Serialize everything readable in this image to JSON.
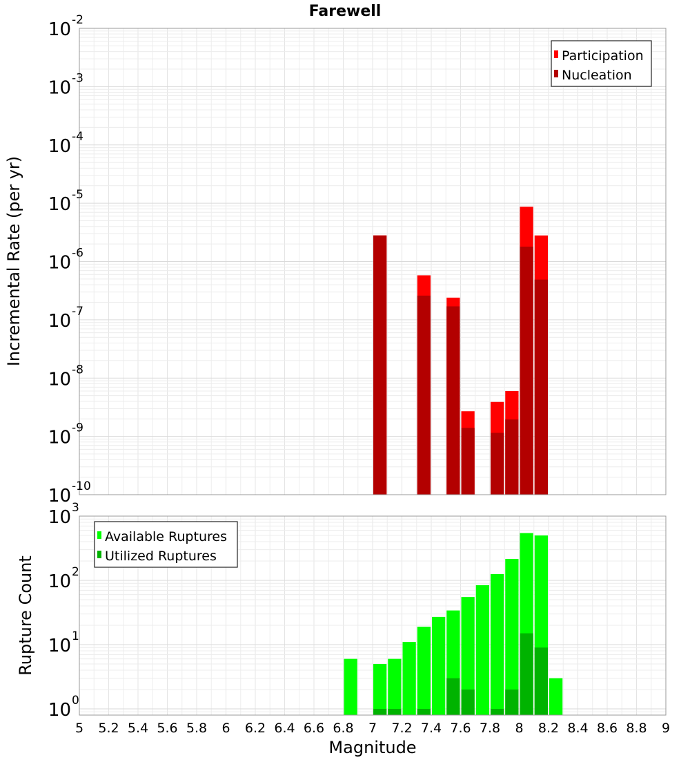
{
  "chart_data": [
    {
      "type": "bar",
      "title": "Farewell",
      "xlabel": "Magnitude",
      "ylabel": "Incremental Rate (per yr)",
      "yscale": "log",
      "xlim": [
        5,
        9
      ],
      "ylim": [
        1e-10,
        0.01
      ],
      "grid": true,
      "legend_position": "top-right",
      "y_ticks": [
        {
          "exp": -2,
          "label": "10",
          "sup": "-2"
        },
        {
          "exp": -3,
          "label": "10",
          "sup": "-3"
        },
        {
          "exp": -4,
          "label": "10",
          "sup": "-4"
        },
        {
          "exp": -5,
          "label": "10",
          "sup": "-5"
        },
        {
          "exp": -6,
          "label": "10",
          "sup": "-6"
        },
        {
          "exp": -7,
          "label": "10",
          "sup": "-7"
        },
        {
          "exp": -8,
          "label": "10",
          "sup": "-8"
        },
        {
          "exp": -9,
          "label": "10",
          "sup": "-9"
        },
        {
          "exp": -10,
          "label": "10",
          "sup": "-10"
        }
      ],
      "series": [
        {
          "name": "Participation",
          "color": "#ff0000",
          "points": [
            {
              "x": 7.05,
              "y": 2.8e-06
            },
            {
              "x": 7.35,
              "y": 5.8e-07
            },
            {
              "x": 7.55,
              "y": 2.4e-07
            },
            {
              "x": 7.65,
              "y": 2.7e-09
            },
            {
              "x": 7.85,
              "y": 3.9e-09
            },
            {
              "x": 7.95,
              "y": 6e-09
            },
            {
              "x": 8.05,
              "y": 8.7e-06
            },
            {
              "x": 8.15,
              "y": 2.8e-06
            }
          ]
        },
        {
          "name": "Nucleation",
          "color": "#b30000",
          "points": [
            {
              "x": 7.05,
              "y": 2.8e-06
            },
            {
              "x": 7.35,
              "y": 2.6e-07
            },
            {
              "x": 7.55,
              "y": 1.7e-07
            },
            {
              "x": 7.65,
              "y": 1.4e-09
            },
            {
              "x": 7.85,
              "y": 1.15e-09
            },
            {
              "x": 7.95,
              "y": 1.95e-09
            },
            {
              "x": 8.05,
              "y": 1.8e-06
            },
            {
              "x": 8.15,
              "y": 4.9e-07
            }
          ]
        }
      ]
    },
    {
      "type": "bar",
      "xlabel": "Magnitude",
      "ylabel": "Rupture Count",
      "yscale": "log",
      "xlim": [
        5,
        9
      ],
      "ylim": [
        0.8,
        1000
      ],
      "grid": true,
      "legend_position": "top-left",
      "x_ticks": [
        "5",
        "5.2",
        "5.4",
        "5.6",
        "5.8",
        "6",
        "6.2",
        "6.4",
        "6.6",
        "6.8",
        "7",
        "7.2",
        "7.4",
        "7.6",
        "7.8",
        "8",
        "8.2",
        "8.4",
        "8.6",
        "8.8",
        "9"
      ],
      "y_ticks": [
        {
          "exp": 3,
          "label": "10",
          "sup": "3"
        },
        {
          "exp": 2,
          "label": "10",
          "sup": "2"
        },
        {
          "exp": 1,
          "label": "10",
          "sup": "1"
        },
        {
          "exp": 0,
          "label": "10",
          "sup": "0"
        }
      ],
      "series": [
        {
          "name": "Available Ruptures",
          "color": "#00ff00",
          "points": [
            {
              "x": 6.85,
              "y": 6
            },
            {
              "x": 7.05,
              "y": 5
            },
            {
              "x": 7.15,
              "y": 6
            },
            {
              "x": 7.25,
              "y": 11
            },
            {
              "x": 7.35,
              "y": 19
            },
            {
              "x": 7.45,
              "y": 27
            },
            {
              "x": 7.55,
              "y": 34
            },
            {
              "x": 7.65,
              "y": 55
            },
            {
              "x": 7.75,
              "y": 84
            },
            {
              "x": 7.85,
              "y": 125
            },
            {
              "x": 7.95,
              "y": 215
            },
            {
              "x": 8.05,
              "y": 545
            },
            {
              "x": 8.15,
              "y": 500
            },
            {
              "x": 8.25,
              "y": 3
            }
          ]
        },
        {
          "name": "Utilized Ruptures",
          "color": "#00b300",
          "points": [
            {
              "x": 7.05,
              "y": 1
            },
            {
              "x": 7.15,
              "y": 1
            },
            {
              "x": 7.35,
              "y": 1
            },
            {
              "x": 7.55,
              "y": 3
            },
            {
              "x": 7.65,
              "y": 2
            },
            {
              "x": 7.85,
              "y": 1
            },
            {
              "x": 7.95,
              "y": 2
            },
            {
              "x": 8.05,
              "y": 15
            },
            {
              "x": 8.15,
              "y": 9
            }
          ]
        }
      ]
    }
  ]
}
